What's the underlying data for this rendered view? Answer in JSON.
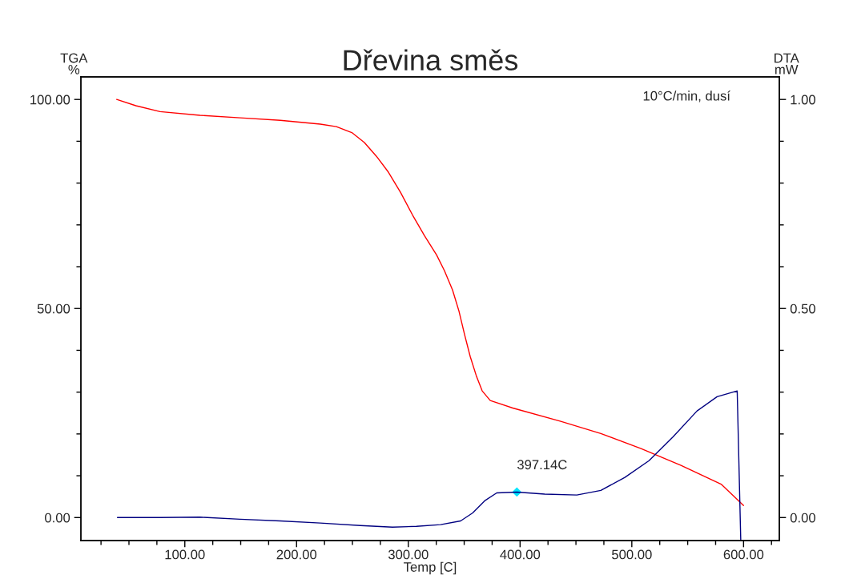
{
  "chart_data": {
    "type": "line",
    "title": "Dřevina směs",
    "xlabel": "Temp [C]",
    "ylabel": "TGA\n%",
    "y2label": "DTA\nmW",
    "annotations": [
      "10°C/min, dusí",
      {
        "text": "397.14C",
        "x": 397.14,
        "y": 6.1
      }
    ],
    "xlim": [
      7,
      632
    ],
    "ylim": [
      -5.5,
      105.4
    ],
    "y2lim": [
      -0.055,
      1.054
    ],
    "xticks": [
      {
        "value": 25,
        "label": null
      },
      {
        "value": 50,
        "label": null
      },
      {
        "value": 75,
        "label": null
      },
      {
        "value": 100,
        "label": "100.00"
      },
      {
        "value": 125,
        "label": null
      },
      {
        "value": 150,
        "label": null
      },
      {
        "value": 175,
        "label": null
      },
      {
        "value": 200,
        "label": "200.00"
      },
      {
        "value": 225,
        "label": null
      },
      {
        "value": 250,
        "label": null
      },
      {
        "value": 275,
        "label": null
      },
      {
        "value": 300,
        "label": "300.00"
      },
      {
        "value": 325,
        "label": null
      },
      {
        "value": 350,
        "label": null
      },
      {
        "value": 375,
        "label": null
      },
      {
        "value": 400,
        "label": "400.00"
      },
      {
        "value": 425,
        "label": null
      },
      {
        "value": 450,
        "label": null
      },
      {
        "value": 475,
        "label": null
      },
      {
        "value": 500,
        "label": "500.00"
      },
      {
        "value": 525,
        "label": null
      },
      {
        "value": 550,
        "label": null
      },
      {
        "value": 575,
        "label": null
      },
      {
        "value": 600,
        "label": "600.00"
      },
      {
        "value": 625,
        "label": null
      }
    ],
    "yticks": [
      {
        "value": 0,
        "label": "0.00"
      },
      {
        "value": 10,
        "label": null
      },
      {
        "value": 20,
        "label": null
      },
      {
        "value": 30,
        "label": null
      },
      {
        "value": 40,
        "label": null
      },
      {
        "value": 50,
        "label": "50.00"
      },
      {
        "value": 60,
        "label": null
      },
      {
        "value": 70,
        "label": null
      },
      {
        "value": 80,
        "label": null
      },
      {
        "value": 90,
        "label": null
      },
      {
        "value": 100,
        "label": "100.00"
      }
    ],
    "y2ticks": [
      {
        "value": 0,
        "label": "0.00"
      },
      {
        "value": 0.1,
        "label": null
      },
      {
        "value": 0.2,
        "label": null
      },
      {
        "value": 0.3,
        "label": null
      },
      {
        "value": 0.4,
        "label": null
      },
      {
        "value": 0.5,
        "label": "0.50"
      },
      {
        "value": 0.6,
        "label": null
      },
      {
        "value": 0.7,
        "label": null
      },
      {
        "value": 0.8,
        "label": null
      },
      {
        "value": 0.9,
        "label": null
      },
      {
        "value": 1.0,
        "label": "1.00"
      }
    ],
    "grid": false,
    "legend": false,
    "line_style": "solid",
    "series": [
      {
        "color": "#ff0000",
        "x": [
          39,
          56.2,
          77.8,
          113.6,
          149.5,
          185.4,
          221.2,
          235.6,
          249.9,
          260.7,
          271.5,
          282.2,
          293.0,
          303.7,
          314.5,
          325.3,
          332.4,
          339.6,
          345.3,
          350.4,
          355.4,
          361.1,
          366.1,
          373.3,
          393.4,
          436.4,
          472.3,
          508.2,
          544.0,
          579.9,
          600
        ],
        "values": [
          100.0,
          98.5,
          97.1,
          96.2,
          95.6,
          95.0,
          94.1,
          93.5,
          92.0,
          89.7,
          86.4,
          82.6,
          77.8,
          72.4,
          67.4,
          62.8,
          59.0,
          54.4,
          49.4,
          43.7,
          38.5,
          33.7,
          30.3,
          28.0,
          26.2,
          23.0,
          20.1,
          16.5,
          12.5,
          8.0,
          2.9
        ]
      },
      {
        "type": "scatter",
        "marker": "diamond",
        "color": "#00e5ff",
        "x": [
          397.14
        ],
        "values": [
          6.1
        ]
      },
      {
        "color": "#000080",
        "axis": "y2",
        "x": [
          39.7,
          77.8,
          113.6,
          149.5,
          185.4,
          221.2,
          257.1,
          285.8,
          307.3,
          328.9,
          346.8,
          357.6,
          368.3,
          379.1,
          397.14,
          422,
          450.8,
          472.3,
          493.8,
          515.4,
          536.9,
          558.4,
          576.3,
          594.3,
          597.5
        ],
        "values": [
          0.0,
          0.0,
          0.001,
          -0.004,
          -0.008,
          -0.013,
          -0.019,
          -0.023,
          -0.021,
          -0.017,
          -0.008,
          0.011,
          0.04,
          0.059,
          0.061,
          0.056,
          0.054,
          0.065,
          0.096,
          0.136,
          0.193,
          0.255,
          0.289,
          0.303,
          -0.055
        ]
      }
    ]
  }
}
